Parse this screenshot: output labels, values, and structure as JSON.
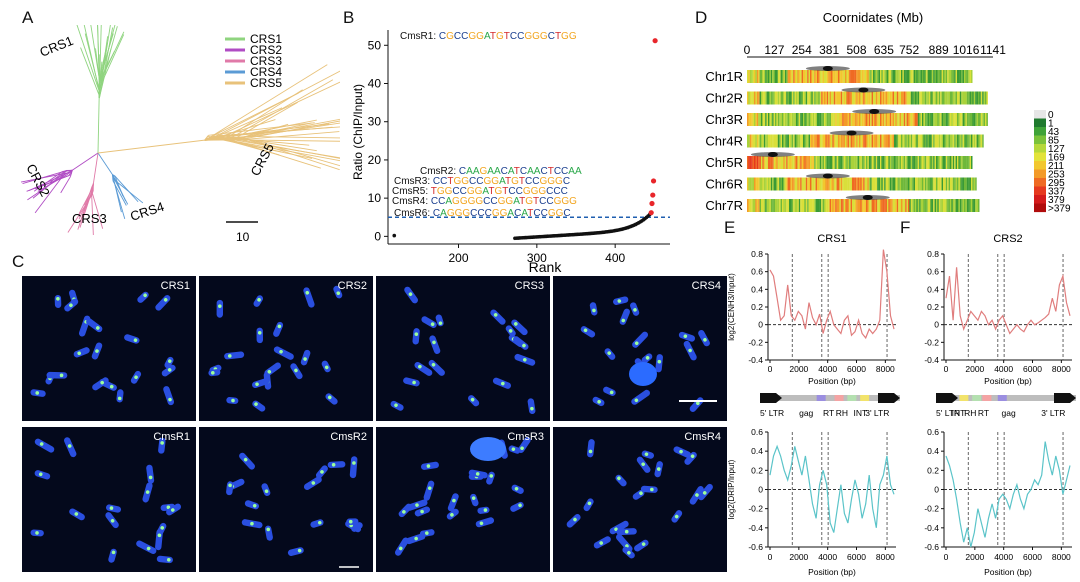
{
  "panels": {
    "A": "A",
    "B": "B",
    "C": "C",
    "D": "D",
    "E": "E",
    "F": "F"
  },
  "panelA": {
    "clade_labels": [
      "CRS1",
      "CRS2",
      "CRS3",
      "CRS4",
      "CRS5"
    ],
    "legend": [
      {
        "name": "CRS1",
        "color": "#8fd47f"
      },
      {
        "name": "CRS2",
        "color": "#b04cc4"
      },
      {
        "name": "CRS3",
        "color": "#e07aa8"
      },
      {
        "name": "CRS4",
        "color": "#5b9bd5"
      },
      {
        "name": "CRS5",
        "color": "#e8c27a"
      }
    ],
    "scale_label": "10"
  },
  "panelB": {
    "chart_data": {
      "type": "scatter",
      "xlabel": "Rank",
      "ylabel": "Ratio (ChIP/Input)",
      "xticks": [
        200,
        300,
        400
      ],
      "yticks": [
        0,
        10,
        20,
        30,
        40,
        50
      ],
      "xlim": [
        110,
        470
      ],
      "ylim": [
        -2,
        54
      ],
      "threshold": 5,
      "highlighted_points": [
        {
          "x": 451,
          "y": 51.2
        },
        {
          "x": 449,
          "y": 14.5
        },
        {
          "x": 448,
          "y": 10.8
        },
        {
          "x": 447,
          "y": 8.6
        },
        {
          "x": 446,
          "y": 6.2
        }
      ],
      "motifs": [
        {
          "name": "CmsR1: ",
          "seq": "CGCCGGATGTCCGGGCTGG"
        },
        {
          "name": "CmsR2: ",
          "seq": "CAAGAACATCAACTCCAA"
        },
        {
          "name": "CmsR3: ",
          "seq": "CCTGGCCGGATGTCCGGGC"
        },
        {
          "name": "CmsR5: ",
          "seq": "TGGCCGGATGTCCGGGCCC"
        },
        {
          "name": "CmsR4: ",
          "seq": "CCAGGGGCCGGATGTCCGGG"
        },
        {
          "name": "CmsR6: ",
          "seq": "CAGGGCCCGGACATCCGGC"
        }
      ]
    }
  },
  "panelC": {
    "images": [
      "CRS1",
      "CRS2",
      "CRS3",
      "CRS4",
      "CmsR1",
      "CmsR2",
      "CmsR3",
      "CmsR4"
    ]
  },
  "panelD": {
    "chart_data": {
      "type": "heatmap",
      "title": "Coornidates (Mb)",
      "ticks": [
        "0",
        "127",
        "254",
        "381",
        "508",
        "635",
        "752",
        "889",
        "1016",
        "1141"
      ],
      "rows": [
        {
          "name": "Chr1R",
          "length": 1050,
          "centromere": 375
        },
        {
          "name": "Chr2R",
          "length": 1120,
          "centromere": 540
        },
        {
          "name": "Chr3R",
          "length": 1120,
          "centromere": 590
        },
        {
          "name": "Chr4R",
          "length": 1100,
          "centromere": 485
        },
        {
          "name": "Chr5R",
          "length": 1050,
          "centromere": 120
        },
        {
          "name": "Chr6R",
          "length": 1070,
          "centromere": 375
        },
        {
          "name": "Chr7R",
          "length": 1080,
          "centromere": 560
        }
      ],
      "colorbar_labels": [
        "0",
        "1",
        "43",
        "85",
        "127",
        "169",
        "211",
        "253",
        "295",
        "337",
        "379",
        ">379"
      ],
      "colorbar_colors": [
        "#e6e6e6",
        "#1f7a2e",
        "#3fa338",
        "#7bc23a",
        "#b6d83a",
        "#e3e33a",
        "#f2c72f",
        "#f39a28",
        "#ef6a23",
        "#e6391f",
        "#d41b1b",
        "#b00c0c"
      ]
    }
  },
  "panelE": {
    "title": "CRS1",
    "top": {
      "ylabel": "log2(CENH3/Input)",
      "yticks": [
        "0.8",
        "0.6",
        "0.4",
        "0.2",
        "0",
        "-0.2",
        "-0.4"
      ],
      "color": "#e07d7d",
      "values": [
        0.62,
        0.55,
        0.3,
        0.05,
        0.1,
        0.45,
        0.1,
        0.05,
        0.15,
        0.1,
        -0.05,
        0.25,
        0.08,
        0.0,
        0.12,
        -0.1,
        0.05,
        0.15,
        0.0,
        -0.05,
        -0.1,
        0.05,
        0.1,
        -0.12,
        -0.08,
        0.05,
        -0.1,
        -0.15,
        -0.05,
        -0.1,
        -0.05,
        0.05,
        0.85,
        0.6,
        0.1,
        -0.05
      ]
    },
    "diagram": {
      "labels": [
        "5' LTR",
        "gag",
        "RT",
        "RH",
        "INT",
        "3' LTR"
      ]
    },
    "bottom": {
      "ylabel": "log2(DRIP/Input)",
      "yticks": [
        "0.6",
        "0.4",
        "0.2",
        "0",
        "-0.2",
        "-0.4",
        "-0.6"
      ],
      "xlabel": "Position (bp)",
      "xticks": [
        "0",
        "2000",
        "4000",
        "6000",
        "8000"
      ],
      "color": "#5bc4c9",
      "values": [
        0.15,
        0.35,
        0.45,
        0.35,
        0.2,
        0.1,
        0.25,
        0.45,
        0.3,
        0.15,
        0.35,
        0.1,
        -0.15,
        -0.3,
        0.05,
        0.2,
        0.05,
        -0.35,
        -0.45,
        -0.2,
        0.05,
        -0.25,
        -0.35,
        -0.1,
        0.1,
        -0.05,
        -0.3,
        -0.15,
        0.15,
        -0.2,
        -0.4,
        0.05,
        0.15,
        0.35,
        0.05,
        -0.05
      ]
    }
  },
  "panelF": {
    "title": "CRS2",
    "top": {
      "ylabel": "",
      "yticks": [
        "0.8",
        "0.6",
        "0.4",
        "0.2",
        "0",
        "-0.2",
        "-0.4"
      ],
      "color": "#e07d7d",
      "values": [
        0.3,
        0.55,
        0.05,
        0.65,
        0.1,
        -0.05,
        0.05,
        0.15,
        0.1,
        0.05,
        0.15,
        0.1,
        0.0,
        0.05,
        -0.05,
        0.05,
        0.1,
        0.0,
        -0.1,
        -0.05,
        0.0,
        -0.05,
        -0.08,
        0.0,
        0.05,
        0.0,
        0.02,
        0.05,
        0.08,
        0.12,
        0.3,
        0.15,
        0.45,
        0.55,
        0.25,
        0.1
      ]
    },
    "diagram": {
      "labels": [
        "5' LTR",
        "INT",
        "RH",
        "RT",
        "gag",
        "3' LTR"
      ]
    },
    "bottom": {
      "ylabel": "",
      "yticks": [
        "0.6",
        "0.4",
        "0.2",
        "0",
        "-0.2",
        "-0.4",
        "-0.6"
      ],
      "xlabel": "Position (bp)",
      "xticks": [
        "0",
        "2000",
        "4000",
        "6000",
        "8000"
      ],
      "color": "#5bc4c9",
      "values": [
        0.35,
        0.25,
        0.1,
        -0.1,
        -0.35,
        -0.55,
        -0.4,
        -0.6,
        -0.45,
        -0.2,
        -0.35,
        -0.5,
        -0.3,
        -0.15,
        -0.3,
        -0.1,
        -0.05,
        -0.1,
        -0.2,
        -0.05,
        0.05,
        -0.1,
        -0.2,
        -0.05,
        0.0,
        0.1,
        0.05,
        0.15,
        0.5,
        0.3,
        0.15,
        0.35,
        0.2,
        -0.05,
        0.1,
        0.25
      ]
    }
  }
}
